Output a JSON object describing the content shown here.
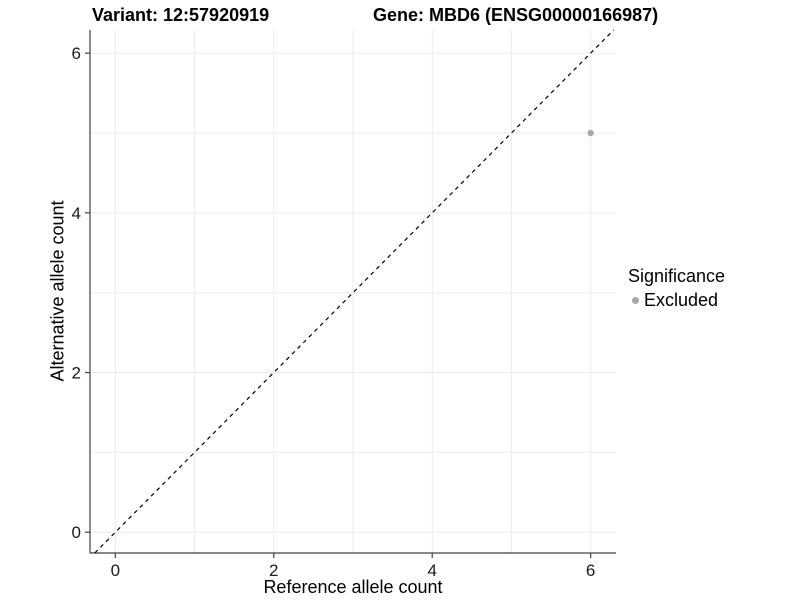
{
  "chart_data": {
    "type": "scatter",
    "title_left": "Variant: 12:57920919",
    "title_right": "Gene: MBD6 (ENSG00000166987)",
    "xlabel": "Reference allele count",
    "ylabel": "Alternative allele count",
    "xlim": [
      -0.32,
      6.32
    ],
    "ylim": [
      -0.26,
      6.29
    ],
    "x_ticks": [
      0,
      2,
      4,
      6
    ],
    "y_ticks": [
      0,
      2,
      4,
      6
    ],
    "grid_lines": [
      0,
      1,
      2,
      3,
      4,
      5,
      6
    ],
    "grid": true,
    "series": [
      {
        "name": "Excluded",
        "color": "#a8a8a8",
        "points": [
          {
            "x": 6,
            "y": 5
          }
        ]
      }
    ],
    "reference_line": {
      "type": "identity",
      "style": "dashed",
      "color": "#000000"
    },
    "legend": {
      "title": "Significance",
      "position": "right",
      "items": [
        {
          "label": "Excluded",
          "color": "#a8a8a8"
        }
      ]
    },
    "colors": {
      "grid": "#ebebeb",
      "axis": "#404040",
      "tick": "#404040",
      "point": "#a8a8a8",
      "diagonal": "#000000"
    }
  }
}
